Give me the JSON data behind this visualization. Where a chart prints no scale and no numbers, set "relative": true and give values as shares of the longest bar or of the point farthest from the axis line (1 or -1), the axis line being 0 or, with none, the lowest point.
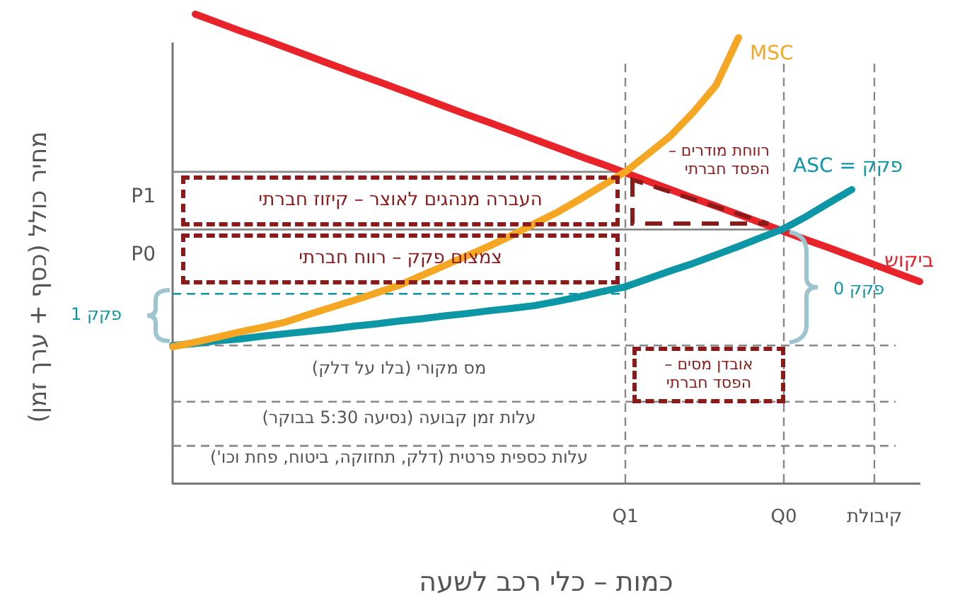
{
  "chart_data": {
    "type": "line",
    "relative": true,
    "xlabel": "כמות – כלי רכב לשעה",
    "ylabel": "מחיר כולל (כסף + ערך זמן)",
    "categories": [
      null,
      null,
      null,
      null,
      null,
      null,
      null,
      null,
      null,
      null,
      null,
      null,
      null,
      null,
      null,
      null,
      null,
      null,
      null,
      null,
      "Q1",
      null,
      null,
      null,
      null,
      null,
      null,
      "Q0",
      null,
      null,
      null,
      "קיבולת",
      null,
      null
    ],
    "grid": "x",
    "series": [
      {
        "name": "MSC",
        "color": "#f5a623",
        "values": [
          0.291,
          0.301,
          0.312,
          0.323,
          0.333,
          0.344,
          0.36,
          0.375,
          0.39,
          0.406,
          0.422,
          0.443,
          0.464,
          0.485,
          0.506,
          0.529,
          0.554,
          0.578,
          0.606,
          0.635,
          0.664,
          0.702,
          0.741,
          0.791,
          0.848,
          0.95,
          null,
          null,
          null,
          null,
          null,
          null,
          null,
          null
        ]
      },
      {
        "name": "פקק = ASC",
        "color": "#0d96a6",
        "values": [
          0.294,
          0.298,
          0.304,
          0.308,
          0.314,
          0.319,
          0.324,
          0.329,
          0.335,
          0.34,
          0.346,
          0.351,
          0.357,
          0.362,
          0.368,
          0.373,
          0.379,
          0.388,
          0.398,
          0.409,
          0.419,
          0.436,
          0.453,
          0.469,
          0.487,
          0.505,
          0.524,
          0.543,
          0.569,
          0.598,
          0.626,
          null,
          null,
          null
        ]
      },
      {
        "name": "ביקוש",
        "color": "#e8232a",
        "values": [
          null,
          1.0,
          0.982,
          0.964,
          0.947,
          0.929,
          0.911,
          0.893,
          0.875,
          0.858,
          0.84,
          0.822,
          0.804,
          0.786,
          0.769,
          0.751,
          0.733,
          0.715,
          0.697,
          0.68,
          0.662,
          0.644,
          0.626,
          0.608,
          0.591,
          0.573,
          0.555,
          0.537,
          0.519,
          0.502,
          0.484,
          0.466,
          0.448,
          0.43
        ]
      }
    ],
    "ref_lines": [
      {
        "axis": "y",
        "value": 0.664,
        "label": "P1",
        "color": "#888888",
        "line_style": "solid"
      },
      {
        "axis": "y",
        "value": 0.541,
        "label": "P0",
        "color": "#888888",
        "line_style": "solid"
      },
      {
        "axis": "y",
        "value": 0.404,
        "label": null,
        "color": "#0d96a6",
        "line_style": "dashed"
      },
      {
        "axis": "y",
        "value": 0.294,
        "label": null,
        "color": "#888888",
        "line_style": "dashed"
      },
      {
        "axis": "y",
        "value": 0.174,
        "label": null,
        "color": "#888888",
        "line_style": "dashed"
      },
      {
        "axis": "y",
        "value": 0.08,
        "label": null,
        "color": "#888888",
        "line_style": "dashed"
      }
    ],
    "annotations": [
      "העברה מנהגים לאוצר – קיזוז חברתי",
      "צמצום פקק – רווח חברתי",
      "רווחת מודרים – הפסד חברתי",
      "אובדן מסים – הפסד חברתי",
      "פקק 1",
      "פקק 0",
      "מס מקורי (בלו על דלק)",
      "עלות זמן קבועה (נסיעה 5:30 בבוקר)",
      "עלות כספית פרטית (דלק, תחזוקה, ביטוח, פחת וכו')"
    ]
  }
}
